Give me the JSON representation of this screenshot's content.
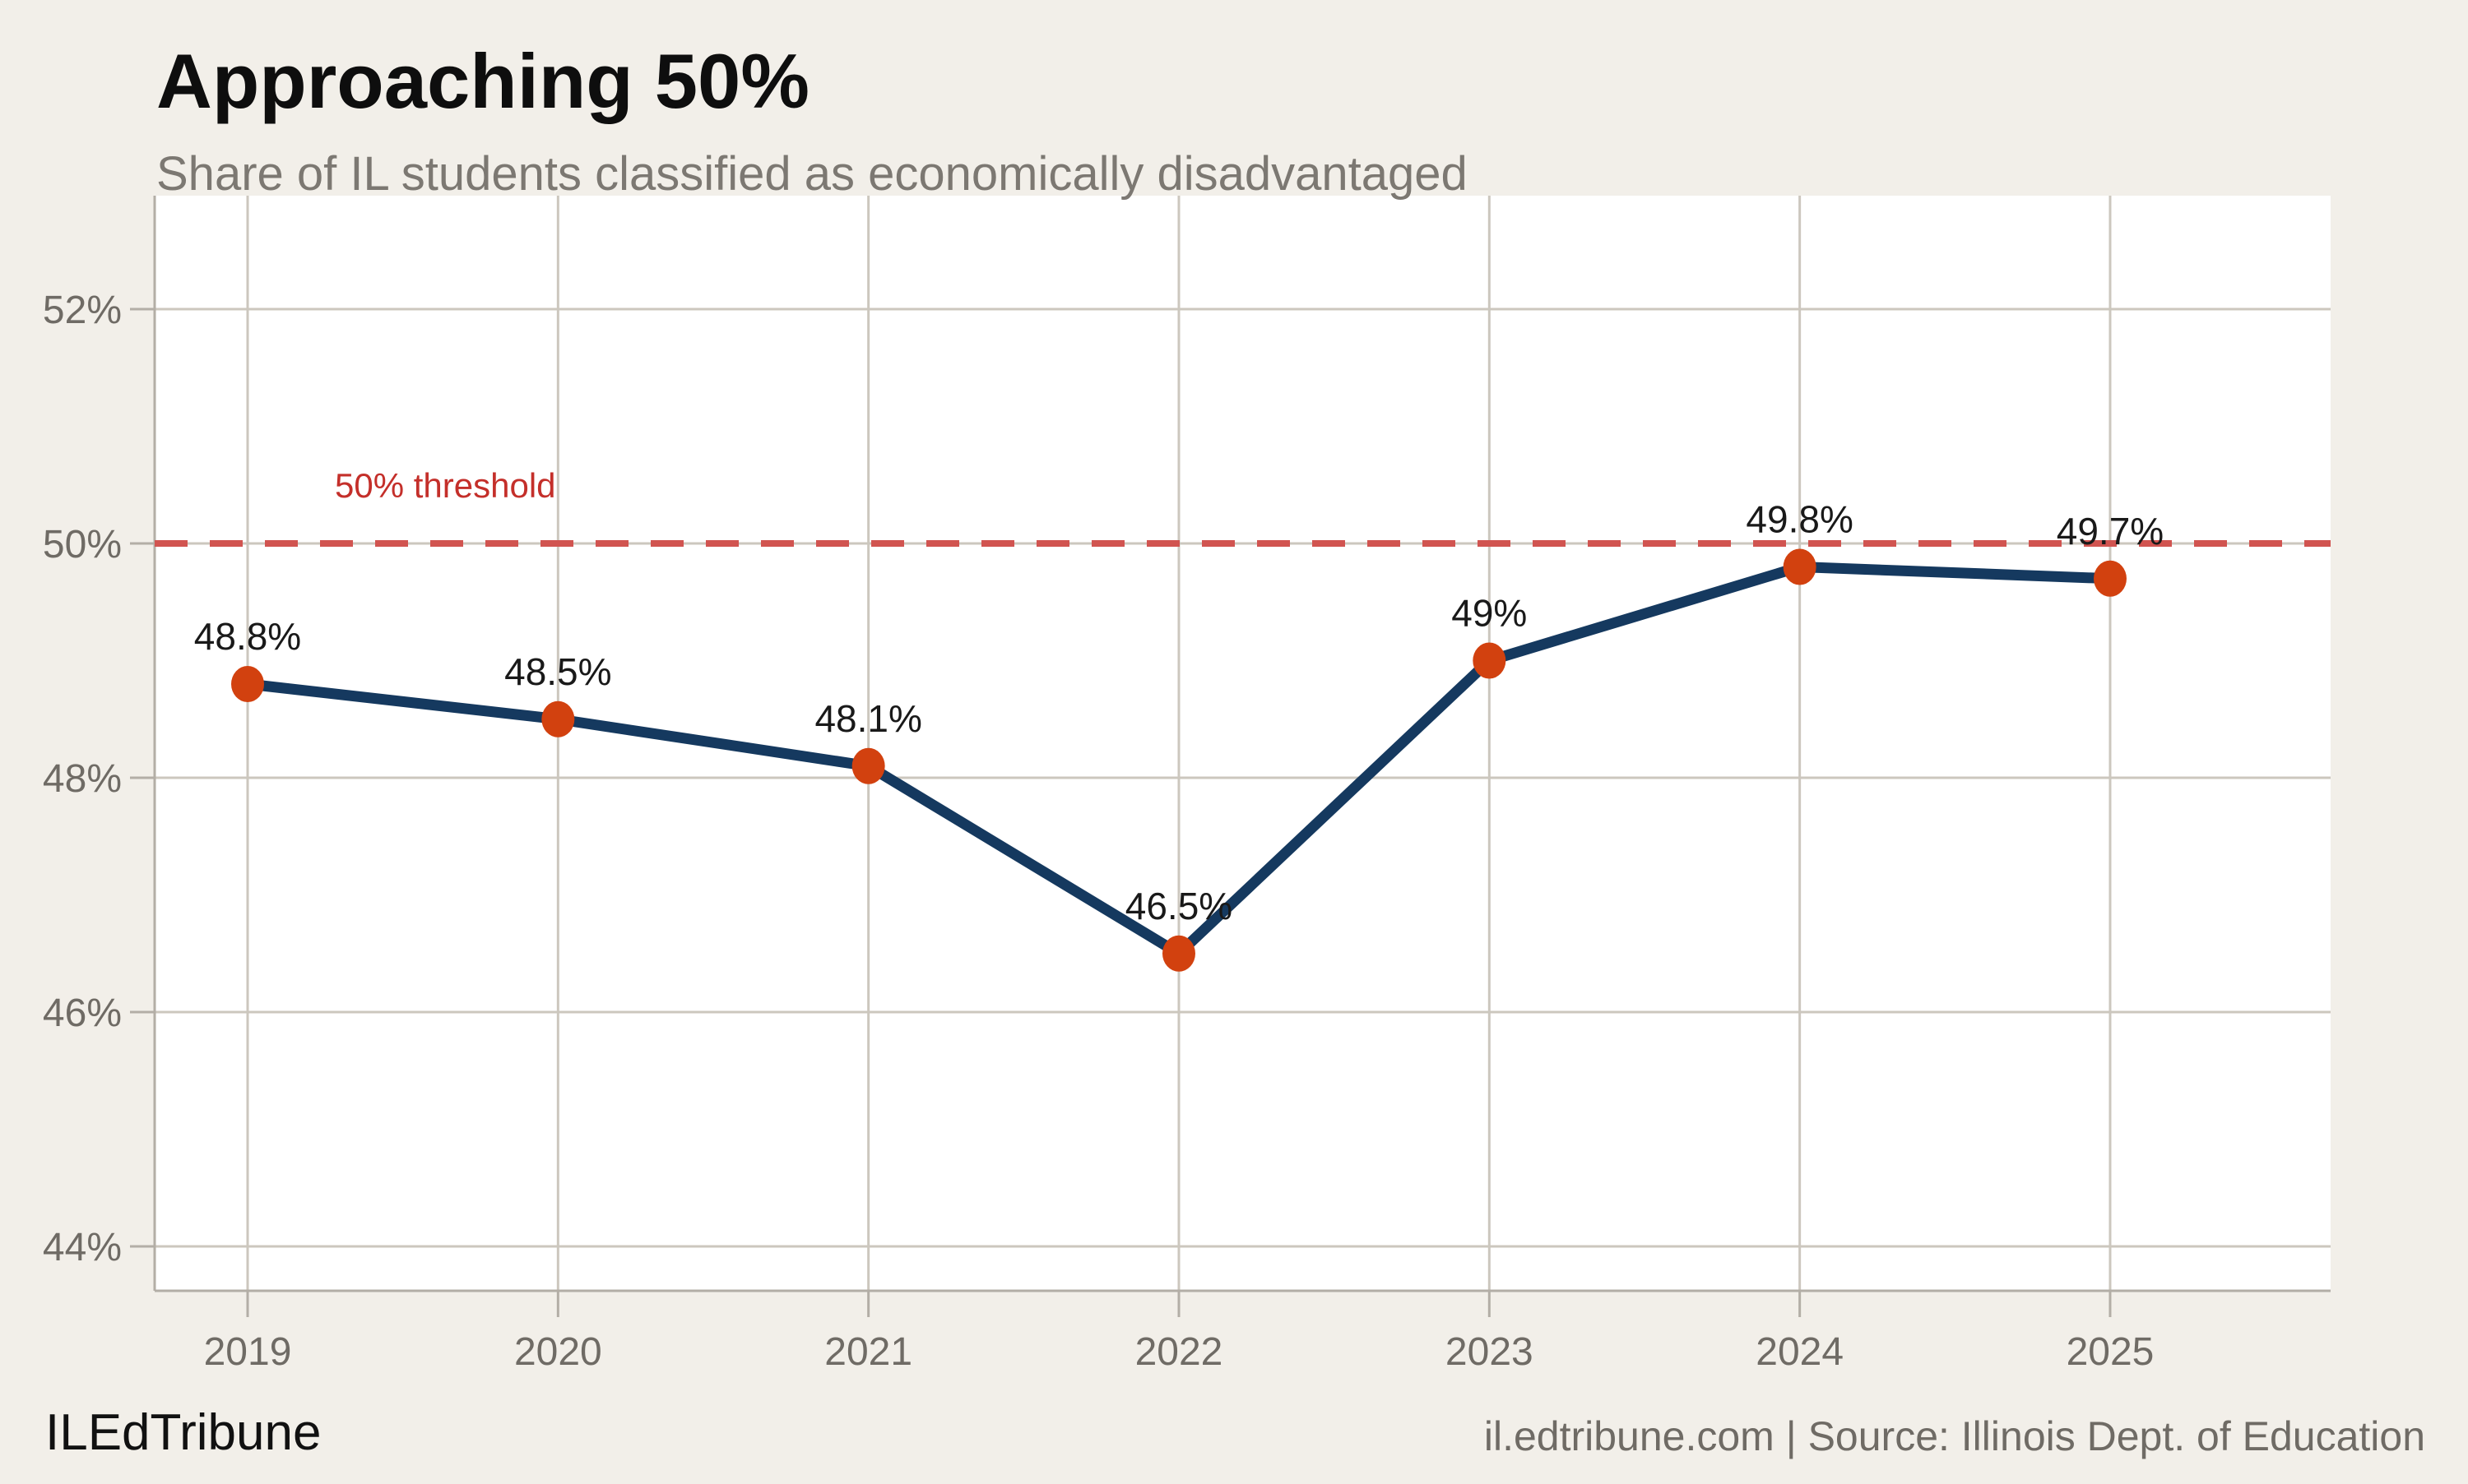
{
  "header": {
    "title": "Approaching 50%",
    "subtitle": "Share of IL students classified as economically disadvantaged"
  },
  "footer": {
    "brand": "ILEdTribune",
    "source": "il.edtribune.com | Source: Illinois Dept. of Education"
  },
  "chart_data": {
    "type": "line",
    "title": "Approaching 50%",
    "subtitle": "Share of IL students classified as economically disadvantaged",
    "categories": [
      "2019",
      "2020",
      "2021",
      "2022",
      "2023",
      "2024",
      "2025"
    ],
    "series": [
      {
        "name": "Share of IL students classified as economically disadvantaged",
        "values": [
          48.8,
          48.5,
          48.1,
          46.5,
          49.0,
          49.8,
          49.7
        ]
      }
    ],
    "point_labels": [
      "48.8%",
      "48.5%",
      "48.1%",
      "46.5%",
      "49%",
      "49.8%",
      "49.7%"
    ],
    "threshold": {
      "value": 50,
      "label": "50% threshold"
    },
    "yticks": [
      44,
      46,
      48,
      50,
      52
    ],
    "ytick_labels": [
      "44%",
      "46%",
      "48%",
      "50%",
      "52%"
    ],
    "ylim": [
      43.6,
      53.0
    ],
    "grid": true,
    "legend": "none",
    "colors": {
      "page_bg": "#f2efe9",
      "plot_bg": "#ffffff",
      "grid": "#ccc7be",
      "axis": "#b3aea6",
      "line": "#15395f",
      "point": "#d2410f",
      "threshold_line": "#d15450",
      "threshold_label": "#c42f2a",
      "axis_text": "#6f6b65",
      "data_label_text": "#191919"
    }
  }
}
